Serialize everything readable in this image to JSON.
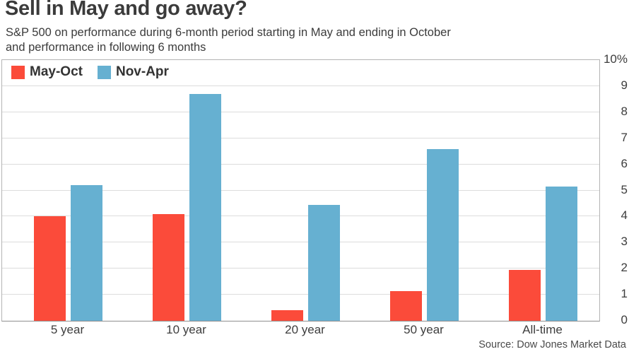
{
  "header": {
    "title": "Sell in May and go away?",
    "subtitle_line1": "S&P 500 on performance during 6-month period starting in May and ending in October",
    "subtitle_line2": "and performance in following 6 months"
  },
  "legend": {
    "series": [
      {
        "label": "May-Oct",
        "color": "#fb4b3a"
      },
      {
        "label": "Nov-Apr",
        "color": "#66b0d1"
      }
    ]
  },
  "chart_data": {
    "type": "bar",
    "title": "Sell in May and go away?",
    "subtitle": "S&P 500 on performance during 6-month period starting in May and ending in October and performance in following 6 months",
    "categories": [
      "5 year",
      "10 year",
      "20 year",
      "50 year",
      "All-time"
    ],
    "series": [
      {
        "name": "May-Oct",
        "color": "#fb4b3a",
        "values": [
          4.0,
          4.1,
          0.4,
          1.15,
          1.95
        ]
      },
      {
        "name": "Nov-Apr",
        "color": "#66b0d1",
        "values": [
          5.2,
          8.7,
          4.45,
          6.6,
          5.15
        ]
      }
    ],
    "xlabel": "",
    "ylabel": "",
    "ylim": [
      0,
      10
    ],
    "y_ticks": [
      "10%",
      "9",
      "8",
      "7",
      "6",
      "5",
      "4",
      "3",
      "2",
      "1",
      "0"
    ],
    "grid": "horizontal",
    "gridline_color": "#dcdcdc",
    "legend_position": "top-left-inside"
  },
  "footer": {
    "source": "Source: Dow Jones Market Data"
  }
}
